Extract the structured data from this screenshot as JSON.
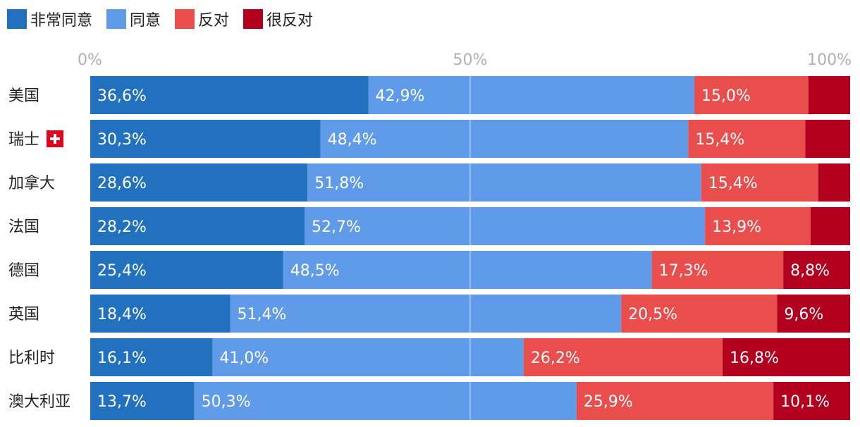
{
  "chart_data": {
    "type": "bar",
    "orientation": "horizontal",
    "stacked": true,
    "percent_stacked": true,
    "categories": [
      "美国",
      "瑞士",
      "加拿大",
      "法国",
      "德国",
      "英国",
      "比利时",
      "澳大利亚"
    ],
    "category_flags": {
      "瑞士": "swiss-flag-icon"
    },
    "series": [
      {
        "name": "非常同意",
        "color": "#2271be",
        "values": [
          36.6,
          30.3,
          28.6,
          28.2,
          25.4,
          18.4,
          16.1,
          13.7
        ],
        "labels": [
          "36,6%",
          "30,3%",
          "28,6%",
          "28,2%",
          "25,4%",
          "18,4%",
          "16,1%",
          "13,7%"
        ]
      },
      {
        "name": "同意",
        "color": "#5f9be8",
        "values": [
          42.9,
          48.4,
          51.8,
          52.7,
          48.5,
          51.4,
          41.0,
          50.3
        ],
        "labels": [
          "42,9%",
          "48,4%",
          "51,8%",
          "52,7%",
          "48,5%",
          "51,4%",
          "41,0%",
          "50,3%"
        ]
      },
      {
        "name": "反对",
        "color": "#ea4e4c",
        "values": [
          15.0,
          15.4,
          15.4,
          13.9,
          17.3,
          20.5,
          26.2,
          25.9
        ],
        "labels": [
          "15,0%",
          "15,4%",
          "15,4%",
          "13,9%",
          "17,3%",
          "20,5%",
          "26,2%",
          "25,9%"
        ]
      },
      {
        "name": "很反对",
        "color": "#b3001f",
        "values": [
          5.5,
          5.9,
          4.2,
          5.2,
          8.8,
          9.6,
          16.8,
          10.1
        ],
        "labels": [
          "",
          "",
          "",
          "",
          "8,8%",
          "9,6%",
          "16,8%",
          "10,1%"
        ]
      }
    ],
    "xlim": [
      0,
      100
    ],
    "ticks": [
      0,
      50,
      100
    ],
    "tick_labels": [
      "0%",
      "50%",
      "100%"
    ],
    "legend_position": "top-left",
    "grid": true
  }
}
